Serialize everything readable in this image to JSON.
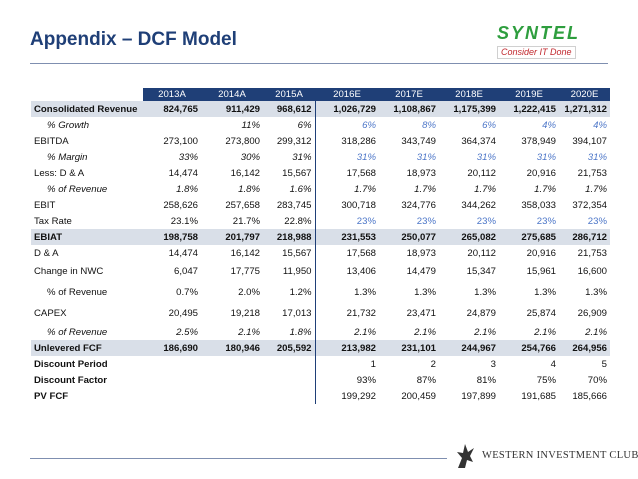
{
  "header": {
    "title": "Appendix – DCF Model",
    "logo_name": "SYNTEL",
    "logo_tagline": "Consider IT Done"
  },
  "footer": {
    "club_name": "WESTERN INVESTMENT CLUB"
  },
  "table": {
    "columns": [
      "2013A",
      "2014A",
      "2015A",
      "2016E",
      "2017E",
      "2018E",
      "2019E",
      "2020E"
    ],
    "rows": {
      "revenue": {
        "label": "Consolidated Revenue",
        "values": [
          "824,765",
          "911,429",
          "968,612",
          "1,026,729",
          "1,108,867",
          "1,175,399",
          "1,222,415",
          "1,271,312"
        ]
      },
      "growth": {
        "label": "% Growth",
        "values": [
          "",
          "11%",
          "6%",
          "6%",
          "8%",
          "6%",
          "4%",
          "4%"
        ]
      },
      "ebitda": {
        "label": "EBITDA",
        "values": [
          "273,100",
          "273,800",
          "299,312",
          "318,286",
          "343,749",
          "364,374",
          "378,949",
          "394,107"
        ]
      },
      "margin": {
        "label": "% Margin",
        "values": [
          "33%",
          "30%",
          "31%",
          "31%",
          "31%",
          "31%",
          "31%",
          "31%"
        ]
      },
      "da": {
        "label": "Less: D & A",
        "values": [
          "14,474",
          "16,142",
          "15,567",
          "17,568",
          "18,973",
          "20,112",
          "20,916",
          "21,753"
        ]
      },
      "da_pct": {
        "label": "% of Revenue",
        "values": [
          "1.8%",
          "1.8%",
          "1.6%",
          "1.7%",
          "1.7%",
          "1.7%",
          "1.7%",
          "1.7%"
        ]
      },
      "ebit": {
        "label": "EBIT",
        "values": [
          "258,626",
          "257,658",
          "283,745",
          "300,718",
          "324,776",
          "344,262",
          "358,033",
          "372,354"
        ]
      },
      "tax": {
        "label": "Tax Rate",
        "values": [
          "23.1%",
          "21.7%",
          "22.8%",
          "23%",
          "23%",
          "23%",
          "23%",
          "23%"
        ]
      },
      "ebiat": {
        "label": "EBIAT",
        "values": [
          "198,758",
          "201,797",
          "218,988",
          "231,553",
          "250,077",
          "265,082",
          "275,685",
          "286,712"
        ]
      },
      "da2": {
        "label": "D & A",
        "values": [
          "14,474",
          "16,142",
          "15,567",
          "17,568",
          "18,973",
          "20,112",
          "20,916",
          "21,753"
        ]
      },
      "nwc": {
        "label": "Change in NWC",
        "values": [
          "6,047",
          "17,775",
          "11,950",
          "13,406",
          "14,479",
          "15,347",
          "15,961",
          "16,600"
        ]
      },
      "nwc_pct": {
        "label": "% of Revenue",
        "values": [
          "0.7%",
          "2.0%",
          "1.2%",
          "1.3%",
          "1.3%",
          "1.3%",
          "1.3%",
          "1.3%"
        ]
      },
      "capex": {
        "label": "CAPEX",
        "values": [
          "20,495",
          "19,218",
          "17,013",
          "21,732",
          "23,471",
          "24,879",
          "25,874",
          "26,909"
        ]
      },
      "capex_pct": {
        "label": "% of Revenue",
        "values": [
          "2.5%",
          "2.1%",
          "1.8%",
          "2.1%",
          "2.1%",
          "2.1%",
          "2.1%",
          "2.1%"
        ]
      },
      "ufcf": {
        "label": "Unlevered FCF",
        "values": [
          "186,690",
          "180,946",
          "205,592",
          "213,982",
          "231,101",
          "244,967",
          "254,766",
          "264,956"
        ]
      },
      "period": {
        "label": "Discount Period",
        "values": [
          "",
          "",
          "",
          "1",
          "2",
          "3",
          "4",
          "5"
        ]
      },
      "factor": {
        "label": "Discount Factor",
        "values": [
          "",
          "",
          "",
          "93%",
          "87%",
          "81%",
          "75%",
          "70%"
        ]
      },
      "pvfcf": {
        "label": "PV FCF",
        "values": [
          "",
          "",
          "",
          "199,292",
          "200,459",
          "197,899",
          "191,685",
          "185,666"
        ]
      }
    }
  },
  "colors": {
    "title": "#1f3f77",
    "header_bg": "#1f3f77",
    "shade": "#d9dfe8",
    "estimate_blue": "#4c76c8",
    "logo_green": "#2e9e3e",
    "logo_red": "#c1272d"
  }
}
